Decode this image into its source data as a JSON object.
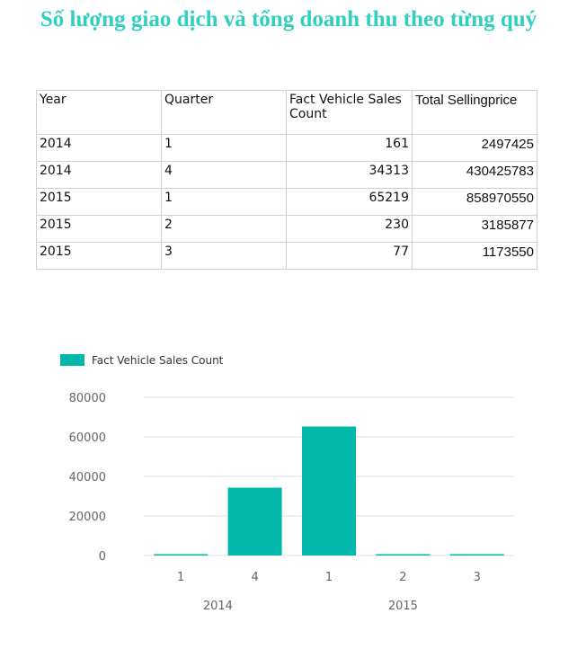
{
  "title": "Số lượng giao dịch và tổng doanh thu theo từng quý",
  "accent_color": "#2fd0c0",
  "bar_color": "#01b8aa",
  "table": {
    "headers": [
      "Year",
      "Quarter",
      "Fact Vehicle Sales Count",
      "Total Sellingprice"
    ],
    "rows": [
      [
        "2014",
        "1",
        "161",
        "2497425"
      ],
      [
        "2014",
        "4",
        "34313",
        "430425783"
      ],
      [
        "2015",
        "1",
        "65219",
        "858970550"
      ],
      [
        "2015",
        "2",
        "230",
        "3185877"
      ],
      [
        "2015",
        "3",
        "77",
        "1173550"
      ]
    ]
  },
  "chart_data": {
    "type": "bar",
    "legend": "Fact Vehicle Sales Count",
    "legend_position": "top-left",
    "categories": [
      "1",
      "4",
      "1",
      "2",
      "3"
    ],
    "groups": [
      {
        "label": "2014",
        "categories": [
          "1",
          "4"
        ]
      },
      {
        "label": "2015",
        "categories": [
          "1",
          "2",
          "3"
        ]
      }
    ],
    "series": [
      {
        "name": "Fact Vehicle Sales Count",
        "values": [
          161,
          34313,
          65219,
          230,
          77
        ]
      }
    ],
    "yticks": [
      "0",
      "20000",
      "40000",
      "60000",
      "80000"
    ],
    "ylim": [
      0,
      80000
    ],
    "grid": true
  }
}
